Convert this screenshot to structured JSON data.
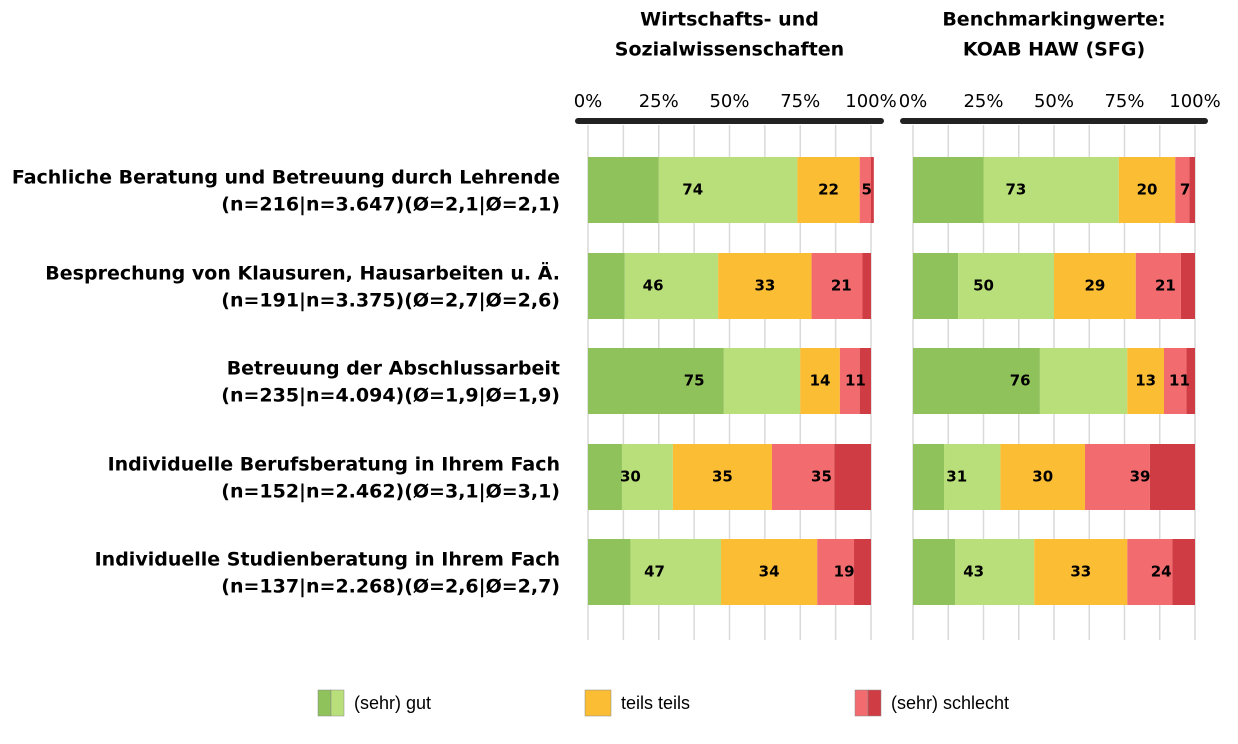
{
  "chart_data": [
    {
      "type": "stacked-bar-horizontal",
      "title": [
        "Wirtschafts- und",
        "Sozialwissenschaften"
      ],
      "categories": [
        "Fachliche Beratung und Betreuung durch Lehrende",
        "Besprechung von Klausuren, Hausarbeiten u. Ä.",
        "Betreuung der Abschlussarbeit",
        "Individuelle Berufsberatung in Ihrem Fach",
        "Individuelle Studienberatung in Ihrem Fach"
      ],
      "category_details": [
        "(n=216|n=3.647)(Ø=2,1|Ø=2,1)",
        "(n=191|n=3.375)(Ø=2,7|Ø=2,6)",
        "(n=235|n=4.094)(Ø=1,9|Ø=1,9)",
        "(n=152|n=2.462)(Ø=3,1|Ø=3,1)",
        "(n=137|n=2.268)(Ø=2,6|Ø=2,7)"
      ],
      "xlim": [
        0,
        100
      ],
      "xticks": [
        {
          "value": 0,
          "label": "0%"
        },
        {
          "value": 25,
          "label": "25%"
        },
        {
          "value": 50,
          "label": "50%"
        },
        {
          "value": 75,
          "label": "75%"
        },
        {
          "value": 100,
          "label": "100%"
        }
      ],
      "minor_xticks": [
        12.5,
        37.5,
        62.5,
        87.5
      ],
      "grid": true,
      "series": [
        {
          "colors": [
            "#8fc25a",
            "#b9df7a"
          ],
          "values": [
            74,
            46,
            75,
            30,
            47
          ],
          "parts": [
            [
              25,
              49
            ],
            [
              13,
              33
            ],
            [
              48,
              27
            ],
            [
              12,
              18
            ],
            [
              15,
              32
            ]
          ]
        },
        {
          "colors": [
            "#fbbd33"
          ],
          "values": [
            22,
            33,
            14,
            35,
            34
          ],
          "parts": [
            [
              22
            ],
            [
              33
            ],
            [
              14
            ],
            [
              35
            ],
            [
              34
            ]
          ]
        },
        {
          "colors": [
            "#f26b6e",
            "#cf3c44"
          ],
          "values": [
            5,
            21,
            11,
            35,
            19
          ],
          "parts": [
            [
              4,
              1
            ],
            [
              18,
              3
            ],
            [
              7,
              4
            ],
            [
              22,
              13
            ],
            [
              13,
              6
            ]
          ]
        }
      ]
    },
    {
      "type": "stacked-bar-horizontal",
      "title": [
        "Benchmarkingwerte:",
        "KOAB HAW (SFG)"
      ],
      "xlim": [
        0,
        100
      ],
      "xticks": [
        {
          "value": 0,
          "label": "0%"
        },
        {
          "value": 25,
          "label": "25%"
        },
        {
          "value": 50,
          "label": "50%"
        },
        {
          "value": 75,
          "label": "75%"
        },
        {
          "value": 100,
          "label": "100%"
        }
      ],
      "minor_xticks": [
        12.5,
        37.5,
        62.5,
        87.5
      ],
      "grid": true,
      "series": [
        {
          "colors": [
            "#8fc25a",
            "#b9df7a"
          ],
          "values": [
            73,
            50,
            76,
            31,
            43
          ],
          "parts": [
            [
              25,
              48
            ],
            [
              16,
              34
            ],
            [
              45,
              31
            ],
            [
              11,
              20
            ],
            [
              15,
              28
            ]
          ]
        },
        {
          "colors": [
            "#fbbd33"
          ],
          "values": [
            20,
            29,
            13,
            30,
            33
          ],
          "parts": [
            [
              20
            ],
            [
              29
            ],
            [
              13
            ],
            [
              30
            ],
            [
              33
            ]
          ]
        },
        {
          "colors": [
            "#f26b6e",
            "#cf3c44"
          ],
          "values": [
            7,
            21,
            11,
            39,
            24
          ],
          "parts": [
            [
              5,
              2
            ],
            [
              16,
              5
            ],
            [
              8,
              3
            ],
            [
              23,
              16
            ],
            [
              16,
              8
            ]
          ]
        }
      ]
    }
  ],
  "legend": [
    {
      "name": "(sehr) gut",
      "colors": [
        "#8fc25a",
        "#b9df7a"
      ]
    },
    {
      "name": "teils teils",
      "colors": [
        "#fbbd33"
      ]
    },
    {
      "name": "(sehr) schlecht",
      "colors": [
        "#f26b6e",
        "#cf3c44"
      ]
    }
  ]
}
